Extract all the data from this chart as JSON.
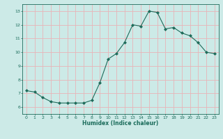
{
  "x": [
    0,
    1,
    2,
    3,
    4,
    5,
    6,
    7,
    8,
    9,
    10,
    11,
    12,
    13,
    14,
    15,
    16,
    17,
    18,
    19,
    20,
    21,
    22,
    23
  ],
  "y": [
    7.2,
    7.1,
    6.7,
    6.4,
    6.3,
    6.3,
    6.3,
    6.3,
    6.5,
    7.8,
    9.5,
    9.9,
    10.7,
    12.0,
    11.9,
    13.0,
    12.9,
    11.7,
    11.8,
    11.4,
    11.2,
    10.7,
    10.0,
    9.9
  ],
  "xlabel": "Humidex (Indice chaleur)",
  "bg_color": "#cceae7",
  "grid_color": "#e8b4b8",
  "line_color": "#1e6b5a",
  "marker_color": "#1e6b5a",
  "tick_label_color": "#1a6b5a",
  "axis_label_color": "#1a6b5a",
  "xlim": [
    -0.5,
    23.5
  ],
  "ylim": [
    5.5,
    13.5
  ],
  "yticks": [
    6,
    7,
    8,
    9,
    10,
    11,
    12,
    13
  ],
  "xticks": [
    0,
    1,
    2,
    3,
    4,
    5,
    6,
    7,
    8,
    9,
    10,
    11,
    12,
    13,
    14,
    15,
    16,
    17,
    18,
    19,
    20,
    21,
    22,
    23
  ]
}
